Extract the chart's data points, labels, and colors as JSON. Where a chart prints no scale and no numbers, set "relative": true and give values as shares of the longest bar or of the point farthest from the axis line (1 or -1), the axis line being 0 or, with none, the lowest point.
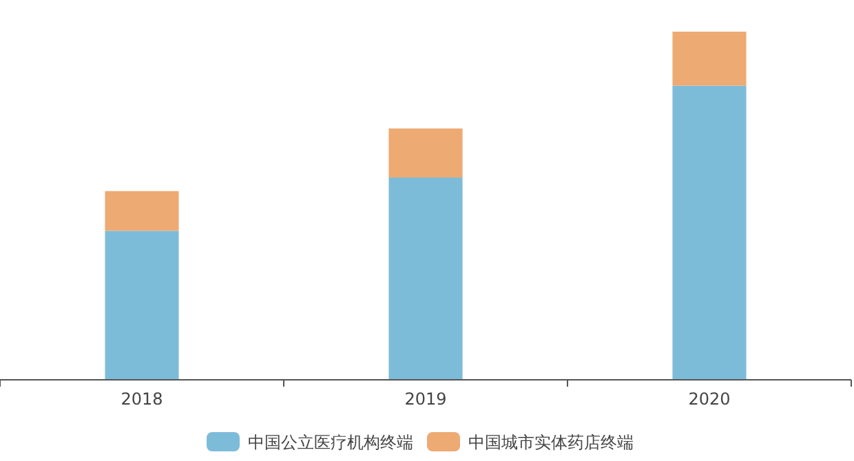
{
  "chart_data": {
    "type": "bar",
    "stacked": true,
    "relative": true,
    "categories": [
      "2018",
      "2019",
      "2020"
    ],
    "series": [
      {
        "name": "中国公立医疗机构终端",
        "color": "#7dbcd9",
        "values": [
          0.428,
          0.581,
          0.845
        ]
      },
      {
        "name": "中国城市实体药店终端",
        "color": "#eeaa73",
        "values": [
          0.114,
          0.141,
          0.155
        ]
      }
    ],
    "legend": "bottom"
  }
}
